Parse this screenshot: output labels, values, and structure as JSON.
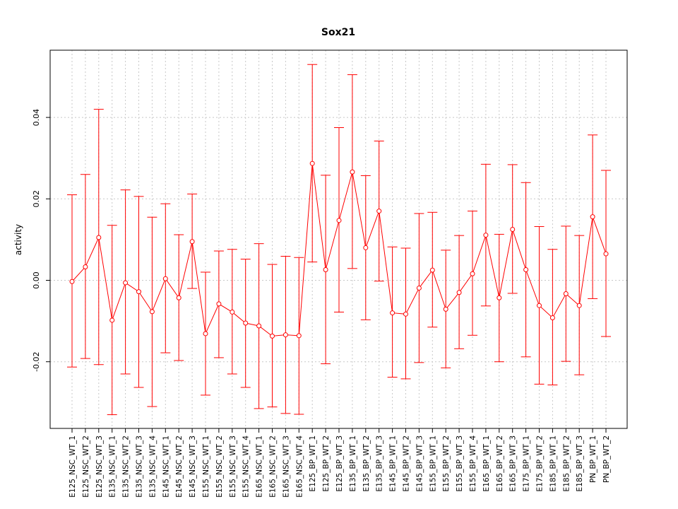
{
  "chart_data": {
    "type": "line",
    "title": "Sox21",
    "xlabel": "",
    "ylabel": "activity",
    "ylim": [
      -0.036,
      0.056
    ],
    "yticks": [
      -0.02,
      0.0,
      0.02,
      0.04
    ],
    "ytick_labels": [
      "-0.02",
      "0.00",
      "0.02",
      "0.04"
    ],
    "grid": true,
    "legend": "none",
    "color": "#ff0000",
    "grid_color": "#c8c8c8",
    "categories": [
      "E125_NSC_WT_1",
      "E125_NSC_WT_2",
      "E125_NSC_WT_3",
      "E135_NSC_WT_1",
      "E135_NSC_WT_2",
      "E135_NSC_WT_3",
      "E135_NSC_WT_4",
      "E145_NSC_WT_1",
      "E145_NSC_WT_2",
      "E145_NSC_WT_3",
      "E155_NSC_WT_1",
      "E155_NSC_WT_2",
      "E155_NSC_WT_3",
      "E155_NSC_WT_4",
      "E165_NSC_WT_1",
      "E165_NSC_WT_2",
      "E165_NSC_WT_3",
      "E165_NSC_WT_4",
      "E125_BP_WT_1",
      "E125_BP_WT_2",
      "E125_BP_WT_3",
      "E135_BP_WT_1",
      "E135_BP_WT_2",
      "E135_BP_WT_3",
      "E145_BP_WT_1",
      "E145_BP_WT_2",
      "E145_BP_WT_3",
      "E155_BP_WT_1",
      "E155_BP_WT_2",
      "E155_BP_WT_3",
      "E155_BP_WT_4",
      "E165_BP_WT_1",
      "E165_BP_WT_2",
      "E165_BP_WT_3",
      "E175_BP_WT_1",
      "E175_BP_WT_2",
      "E185_BP_WT_1",
      "E185_BP_WT_2",
      "E185_BP_WT_3",
      "PN_BP_WT_1",
      "PN_BP_WT_2"
    ],
    "values": [
      -0.0003,
      0.0033,
      0.0105,
      -0.0098,
      -0.0006,
      -0.0028,
      -0.0077,
      0.0004,
      -0.0043,
      0.0095,
      -0.0131,
      -0.0058,
      -0.0078,
      -0.0105,
      -0.0112,
      -0.0137,
      -0.0134,
      -0.0136,
      0.0287,
      0.0026,
      0.0147,
      0.0266,
      0.008,
      0.017,
      -0.008,
      -0.0083,
      -0.0019,
      0.0025,
      -0.0071,
      -0.003,
      0.0016,
      0.0111,
      -0.0043,
      0.0125,
      0.0026,
      -0.0062,
      -0.0092,
      -0.0033,
      -0.0062,
      0.0156,
      0.0065
    ],
    "upper": [
      0.021,
      0.026,
      0.042,
      0.0135,
      0.0222,
      0.0206,
      0.0155,
      0.0188,
      0.0112,
      0.0212,
      0.002,
      0.0072,
      0.0076,
      0.0052,
      0.009,
      0.0039,
      0.0059,
      0.0056,
      0.053,
      0.0258,
      0.0375,
      0.0505,
      0.0257,
      0.0342,
      0.0082,
      0.0079,
      0.0164,
      0.0167,
      0.0074,
      0.011,
      0.017,
      0.0285,
      0.0113,
      0.0284,
      0.024,
      0.0132,
      0.0076,
      0.0133,
      0.011,
      0.0357,
      0.027
    ],
    "lower": [
      -0.0213,
      -0.0192,
      -0.0207,
      -0.033,
      -0.023,
      -0.0263,
      -0.031,
      -0.0178,
      -0.0197,
      -0.002,
      -0.0282,
      -0.019,
      -0.023,
      -0.0263,
      -0.0315,
      -0.0311,
      -0.0327,
      -0.0329,
      0.0045,
      -0.0205,
      -0.0078,
      0.0029,
      -0.0097,
      -0.0002,
      -0.0238,
      -0.0242,
      -0.0202,
      -0.0115,
      -0.0215,
      -0.0168,
      -0.0135,
      -0.0063,
      -0.02,
      -0.0032,
      -0.0188,
      -0.0255,
      -0.0257,
      -0.0199,
      -0.0232,
      -0.0045,
      -0.0138
    ]
  }
}
